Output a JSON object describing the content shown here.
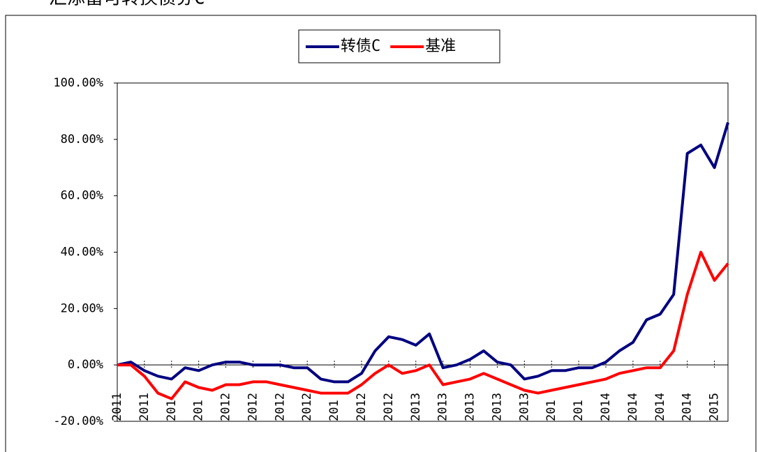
{
  "chart_data": {
    "type": "line",
    "title": "汇添富可转换债券C",
    "categories": [
      "2011",
      null,
      "2011",
      null,
      "201",
      null,
      "201",
      null,
      "2012",
      null,
      "2012",
      null,
      "2012",
      null,
      "2012",
      null,
      "201",
      null,
      "2012",
      null,
      "2012",
      null,
      "2013",
      null,
      "2013",
      null,
      "2013",
      null,
      "2013",
      null,
      "2013",
      null,
      "201",
      null,
      "201",
      null,
      "2014",
      null,
      "2014",
      null,
      "2014",
      null,
      "2014",
      null,
      "2015",
      null
    ],
    "series": [
      {
        "name": "转债C",
        "color": "#000080",
        "values": [
          0,
          1,
          -2,
          -4,
          -5,
          -1,
          -2,
          0,
          1,
          1,
          0,
          0,
          0,
          -1,
          -1,
          -5,
          -6,
          -6,
          -3,
          5,
          10,
          9,
          7,
          11,
          -1,
          0,
          2,
          5,
          1,
          0,
          -5,
          -4,
          -2,
          -2,
          -1,
          -1,
          1,
          5,
          8,
          16,
          18,
          25,
          75,
          78,
          70,
          86
        ]
      },
      {
        "name": "基准",
        "color": "#ff0000",
        "values": [
          0,
          0,
          -4,
          -10,
          -12,
          -6,
          -8,
          -9,
          -7,
          -7,
          -6,
          -6,
          -7,
          -8,
          -9,
          -10,
          -10,
          -10,
          -7,
          -3,
          0,
          -3,
          -2,
          0,
          -7,
          -6,
          -5,
          -3,
          -5,
          -7,
          -9,
          -10,
          -9,
          -8,
          -7,
          -6,
          -5,
          -3,
          -2,
          -1,
          -1,
          5,
          25,
          40,
          30,
          36
        ]
      }
    ],
    "ylim": [
      -20,
      100
    ],
    "yticks": [
      {
        "value": -20,
        "label": "-20.00%"
      },
      {
        "value": 0,
        "label": "0.00%"
      },
      {
        "value": 20,
        "label": "20.00%"
      },
      {
        "value": 40,
        "label": "40.00%"
      },
      {
        "value": 60,
        "label": "60.00%"
      },
      {
        "value": 80,
        "label": "80.00%"
      },
      {
        "value": 100,
        "label": "100.00%"
      }
    ],
    "legend": "top"
  }
}
